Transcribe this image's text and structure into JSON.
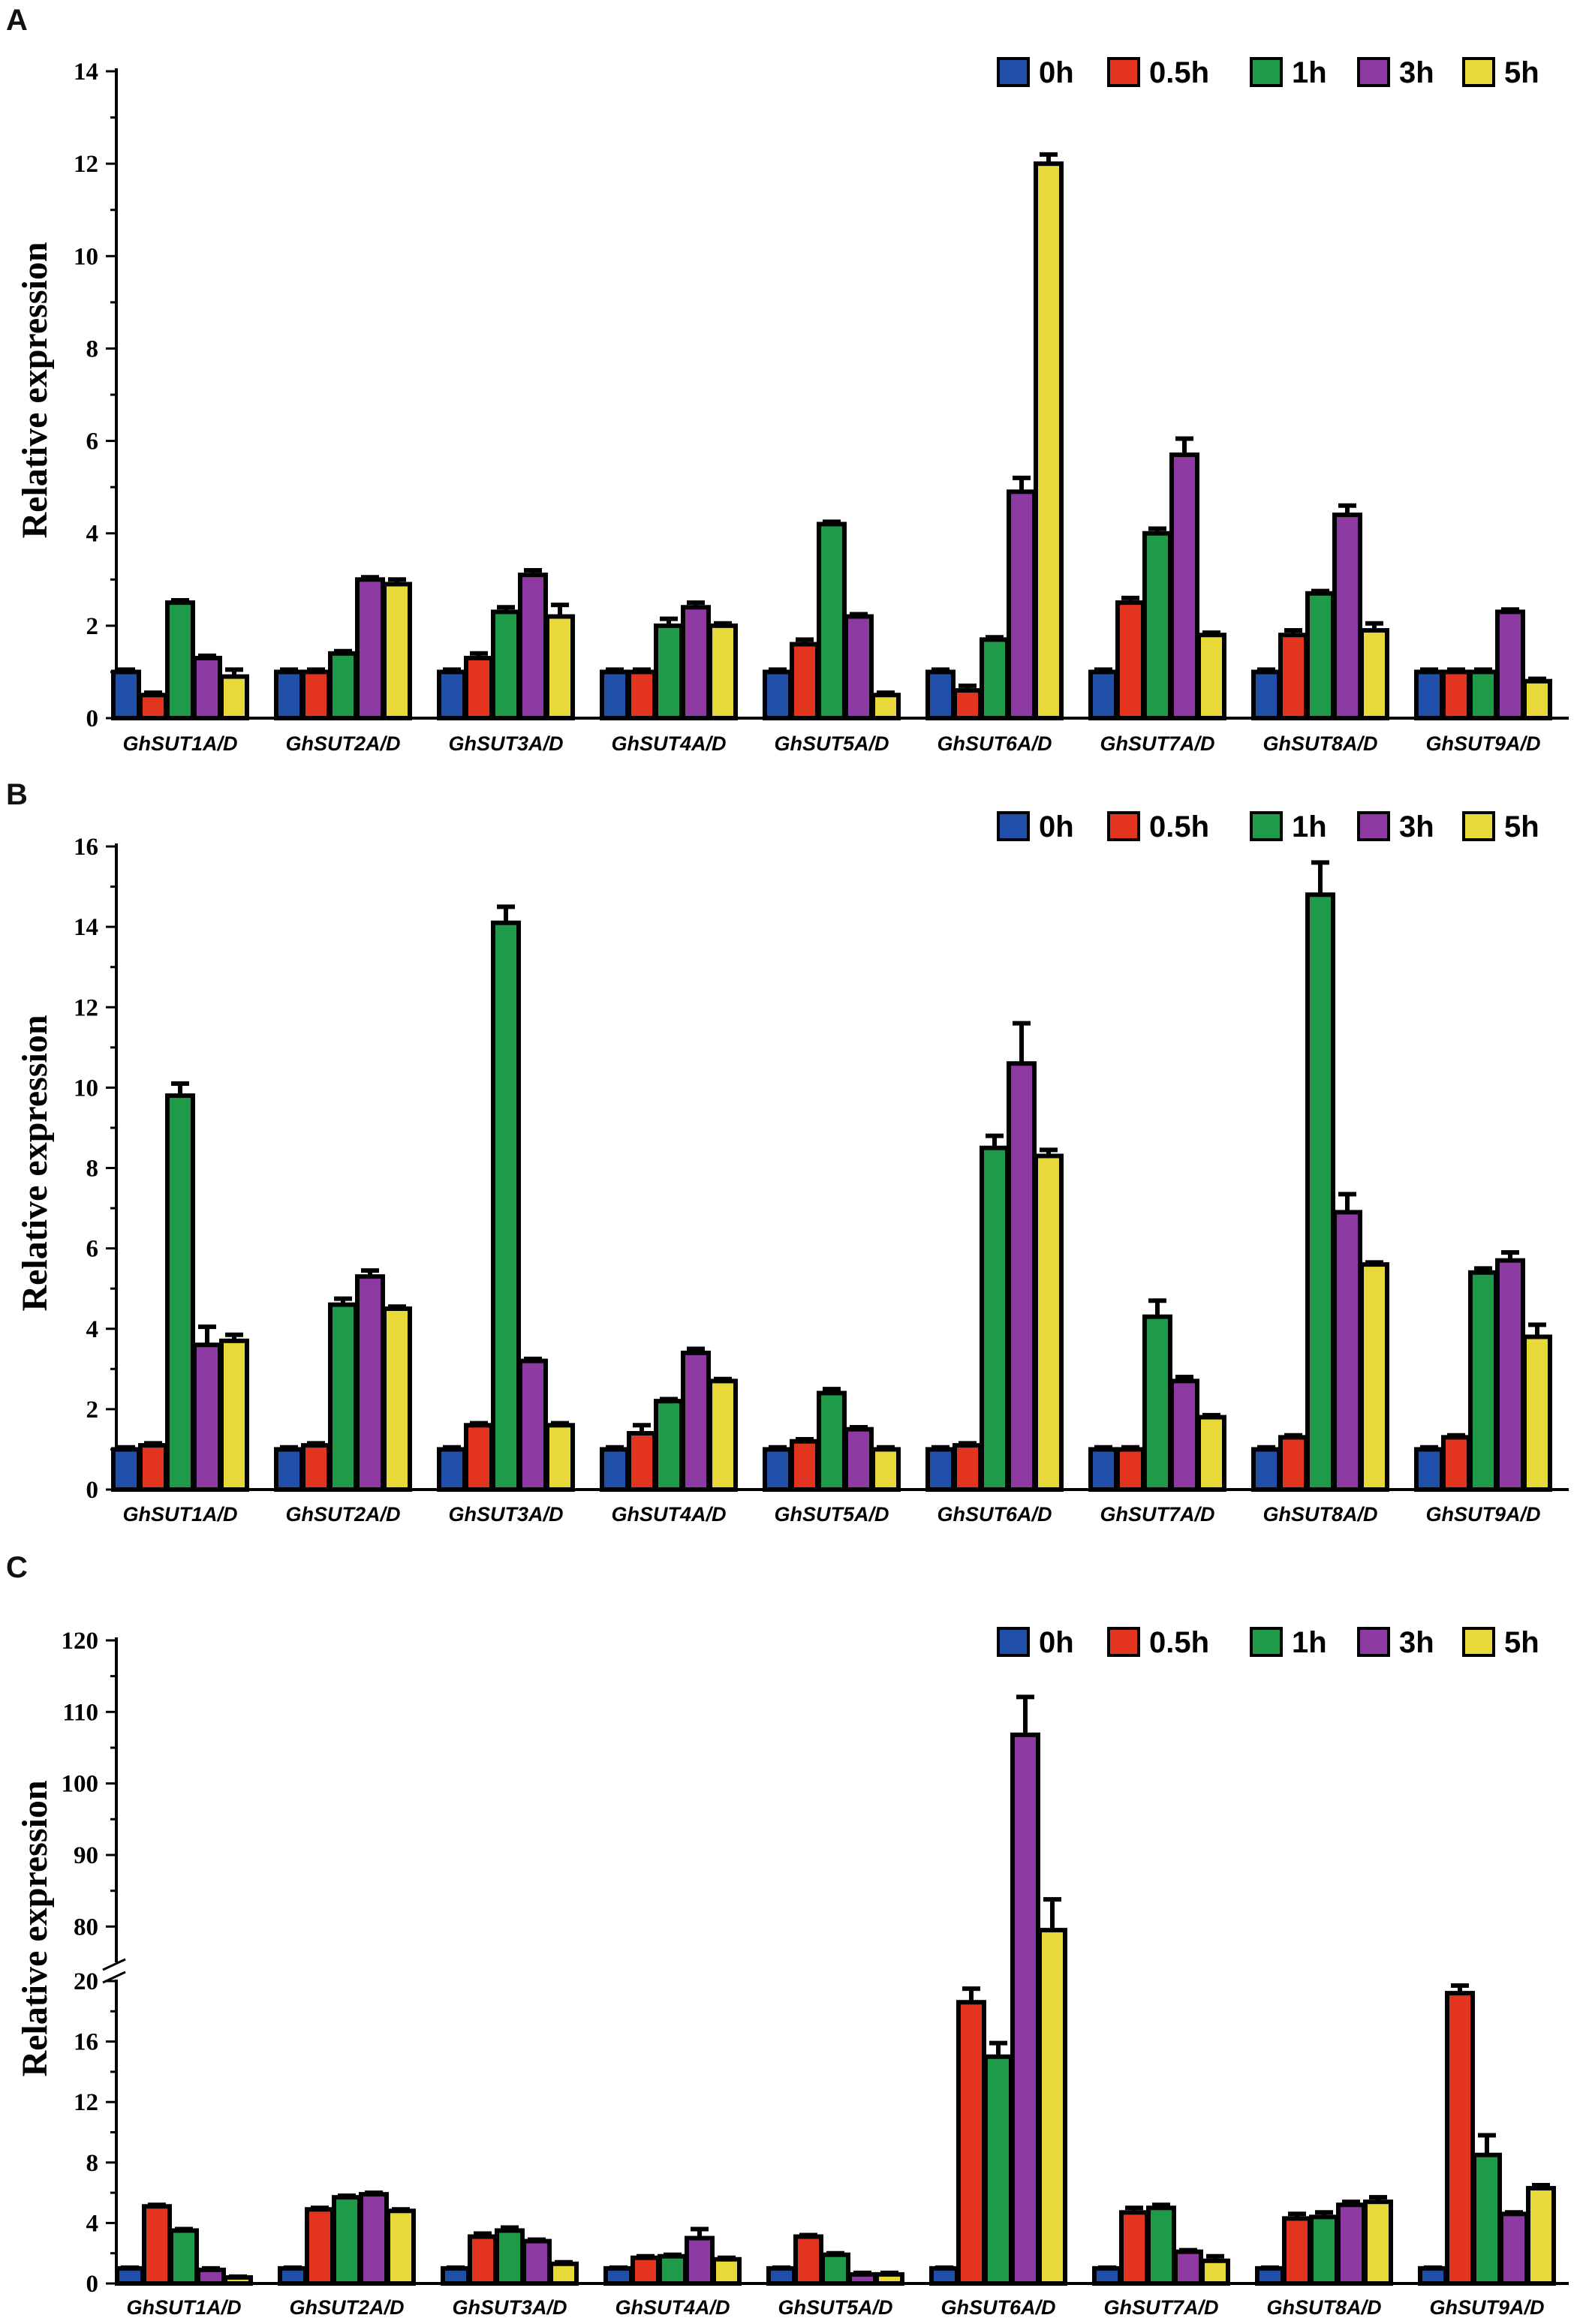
{
  "chart_data": [
    {
      "panel": "A",
      "type": "bar",
      "title": "",
      "xlabel": "",
      "ylabel": "Relative  expression",
      "ylim": [
        0,
        14
      ],
      "yticks": [
        "0",
        "2",
        "4",
        "6",
        "8",
        "10",
        "12",
        "14"
      ],
      "legend_position": "top-right",
      "categories": [
        "GhSUT1A/D",
        "GhSUT2A/D",
        "GhSUT3A/D",
        "GhSUT4A/D",
        "GhSUT5A/D",
        "GhSUT6A/D",
        "GhSUT7A/D",
        "GhSUT8A/D",
        "GhSUT9A/D"
      ],
      "series": [
        {
          "name": "0h",
          "color": "#1f4fa8",
          "values": [
            1.0,
            1.0,
            1.0,
            1.0,
            1.0,
            1.0,
            1.0,
            1.0,
            1.0
          ],
          "errors": [
            0.05,
            0.05,
            0.05,
            0.05,
            0.05,
            0.05,
            0.05,
            0.05,
            0.05
          ]
        },
        {
          "name": "0.5h",
          "color": "#e2341f",
          "values": [
            0.5,
            1.0,
            1.3,
            1.0,
            1.6,
            0.6,
            2.5,
            1.8,
            1.0
          ],
          "errors": [
            0.05,
            0.05,
            0.1,
            0.05,
            0.1,
            0.1,
            0.1,
            0.1,
            0.05
          ]
        },
        {
          "name": "1h",
          "color": "#1f9a48",
          "values": [
            2.5,
            1.4,
            2.3,
            2.0,
            4.2,
            1.7,
            4.0,
            2.7,
            1.0
          ],
          "errors": [
            0.05,
            0.05,
            0.1,
            0.15,
            0.05,
            0.05,
            0.1,
            0.05,
            0.05
          ]
        },
        {
          "name": "3h",
          "color": "#8e3aa3",
          "values": [
            1.3,
            3.0,
            3.1,
            2.4,
            2.2,
            4.9,
            5.7,
            4.4,
            2.3
          ],
          "errors": [
            0.05,
            0.05,
            0.1,
            0.1,
            0.05,
            0.3,
            0.35,
            0.2,
            0.05
          ]
        },
        {
          "name": "5h",
          "color": "#e9d83a",
          "values": [
            0.9,
            2.9,
            2.2,
            2.0,
            0.5,
            12.0,
            1.8,
            1.9,
            0.8
          ],
          "errors": [
            0.15,
            0.1,
            0.25,
            0.05,
            0.05,
            0.2,
            0.05,
            0.15,
            0.05
          ]
        }
      ]
    },
    {
      "panel": "B",
      "type": "bar",
      "title": "",
      "xlabel": "",
      "ylabel": "Relative  expression",
      "ylim": [
        0,
        16
      ],
      "yticks": [
        "0",
        "2",
        "4",
        "6",
        "8",
        "10",
        "12",
        "14",
        "16"
      ],
      "legend_position": "top-right",
      "categories": [
        "GhSUT1A/D",
        "GhSUT2A/D",
        "GhSUT3A/D",
        "GhSUT4A/D",
        "GhSUT5A/D",
        "GhSUT6A/D",
        "GhSUT7A/D",
        "GhSUT8A/D",
        "GhSUT9A/D"
      ],
      "series": [
        {
          "name": "0h",
          "color": "#1f4fa8",
          "values": [
            1.0,
            1.0,
            1.0,
            1.0,
            1.0,
            1.0,
            1.0,
            1.0,
            1.0
          ],
          "errors": [
            0.05,
            0.05,
            0.05,
            0.05,
            0.05,
            0.05,
            0.05,
            0.05,
            0.05
          ]
        },
        {
          "name": "0.5h",
          "color": "#e2341f",
          "values": [
            1.1,
            1.1,
            1.6,
            1.4,
            1.2,
            1.1,
            1.0,
            1.3,
            1.3
          ],
          "errors": [
            0.05,
            0.05,
            0.05,
            0.2,
            0.05,
            0.05,
            0.05,
            0.05,
            0.05
          ]
        },
        {
          "name": "1h",
          "color": "#1f9a48",
          "values": [
            9.8,
            4.6,
            14.1,
            2.2,
            2.4,
            8.5,
            4.3,
            14.8,
            5.4
          ],
          "errors": [
            0.3,
            0.15,
            0.4,
            0.05,
            0.1,
            0.3,
            0.4,
            0.8,
            0.1
          ]
        },
        {
          "name": "3h",
          "color": "#8e3aa3",
          "values": [
            3.6,
            5.3,
            3.2,
            3.4,
            1.5,
            10.6,
            2.7,
            6.9,
            5.7
          ],
          "errors": [
            0.45,
            0.15,
            0.05,
            0.1,
            0.05,
            1.0,
            0.1,
            0.45,
            0.2
          ]
        },
        {
          "name": "5h",
          "color": "#e9d83a",
          "values": [
            3.7,
            4.5,
            1.6,
            2.7,
            1.0,
            8.3,
            1.8,
            5.6,
            3.8
          ],
          "errors": [
            0.15,
            0.05,
            0.05,
            0.05,
            0.05,
            0.15,
            0.05,
            0.05,
            0.3
          ]
        }
      ]
    },
    {
      "panel": "C",
      "type": "bar",
      "title": "",
      "xlabel": "",
      "ylabel": "Relative  expression",
      "axis_break": [
        20,
        75
      ],
      "ylim_lower": [
        0,
        20
      ],
      "ylim_upper": [
        75,
        120
      ],
      "yticks_lower": [
        "0",
        "4",
        "8",
        "12",
        "16",
        "20"
      ],
      "yticks_upper": [
        "80",
        "90",
        "100",
        "110",
        "120"
      ],
      "legend_position": "top-right",
      "categories": [
        "GhSUT1A/D",
        "GhSUT2A/D",
        "GhSUT3A/D",
        "GhSUT4A/D",
        "GhSUT5A/D",
        "GhSUT6A/D",
        "GhSUT7A/D",
        "GhSUT8A/D",
        "GhSUT9A/D"
      ],
      "series": [
        {
          "name": "0h",
          "color": "#1f4fa8",
          "values": [
            1.0,
            1.0,
            1.0,
            1.0,
            1.0,
            1.0,
            1.0,
            1.0,
            1.0
          ],
          "errors": [
            0.05,
            0.05,
            0.05,
            0.05,
            0.05,
            0.05,
            0.05,
            0.05,
            0.05
          ]
        },
        {
          "name": "0.5h",
          "color": "#e2341f",
          "values": [
            5.1,
            4.9,
            3.1,
            1.7,
            3.1,
            18.6,
            4.7,
            4.3,
            19.2
          ],
          "errors": [
            0.1,
            0.1,
            0.2,
            0.1,
            0.1,
            0.9,
            0.3,
            0.3,
            0.5
          ]
        },
        {
          "name": "1h",
          "color": "#1f9a48",
          "values": [
            3.5,
            5.7,
            3.5,
            1.8,
            1.9,
            15.0,
            5.0,
            4.4,
            8.5
          ],
          "errors": [
            0.1,
            0.1,
            0.2,
            0.1,
            0.1,
            0.9,
            0.2,
            0.3,
            1.3
          ]
        },
        {
          "name": "3h",
          "color": "#8e3aa3",
          "values": [
            0.9,
            5.9,
            2.8,
            3.0,
            0.6,
            106.8,
            2.1,
            5.2,
            4.6
          ],
          "errors": [
            0.1,
            0.1,
            0.1,
            0.6,
            0.1,
            5.3,
            0.1,
            0.2,
            0.1
          ]
        },
        {
          "name": "5h",
          "color": "#e9d83a",
          "values": [
            0.4,
            4.8,
            1.3,
            1.6,
            0.6,
            79.5,
            1.5,
            5.4,
            6.3
          ],
          "errors": [
            0.05,
            0.1,
            0.1,
            0.1,
            0.1,
            4.3,
            0.3,
            0.3,
            0.2
          ]
        }
      ]
    }
  ]
}
